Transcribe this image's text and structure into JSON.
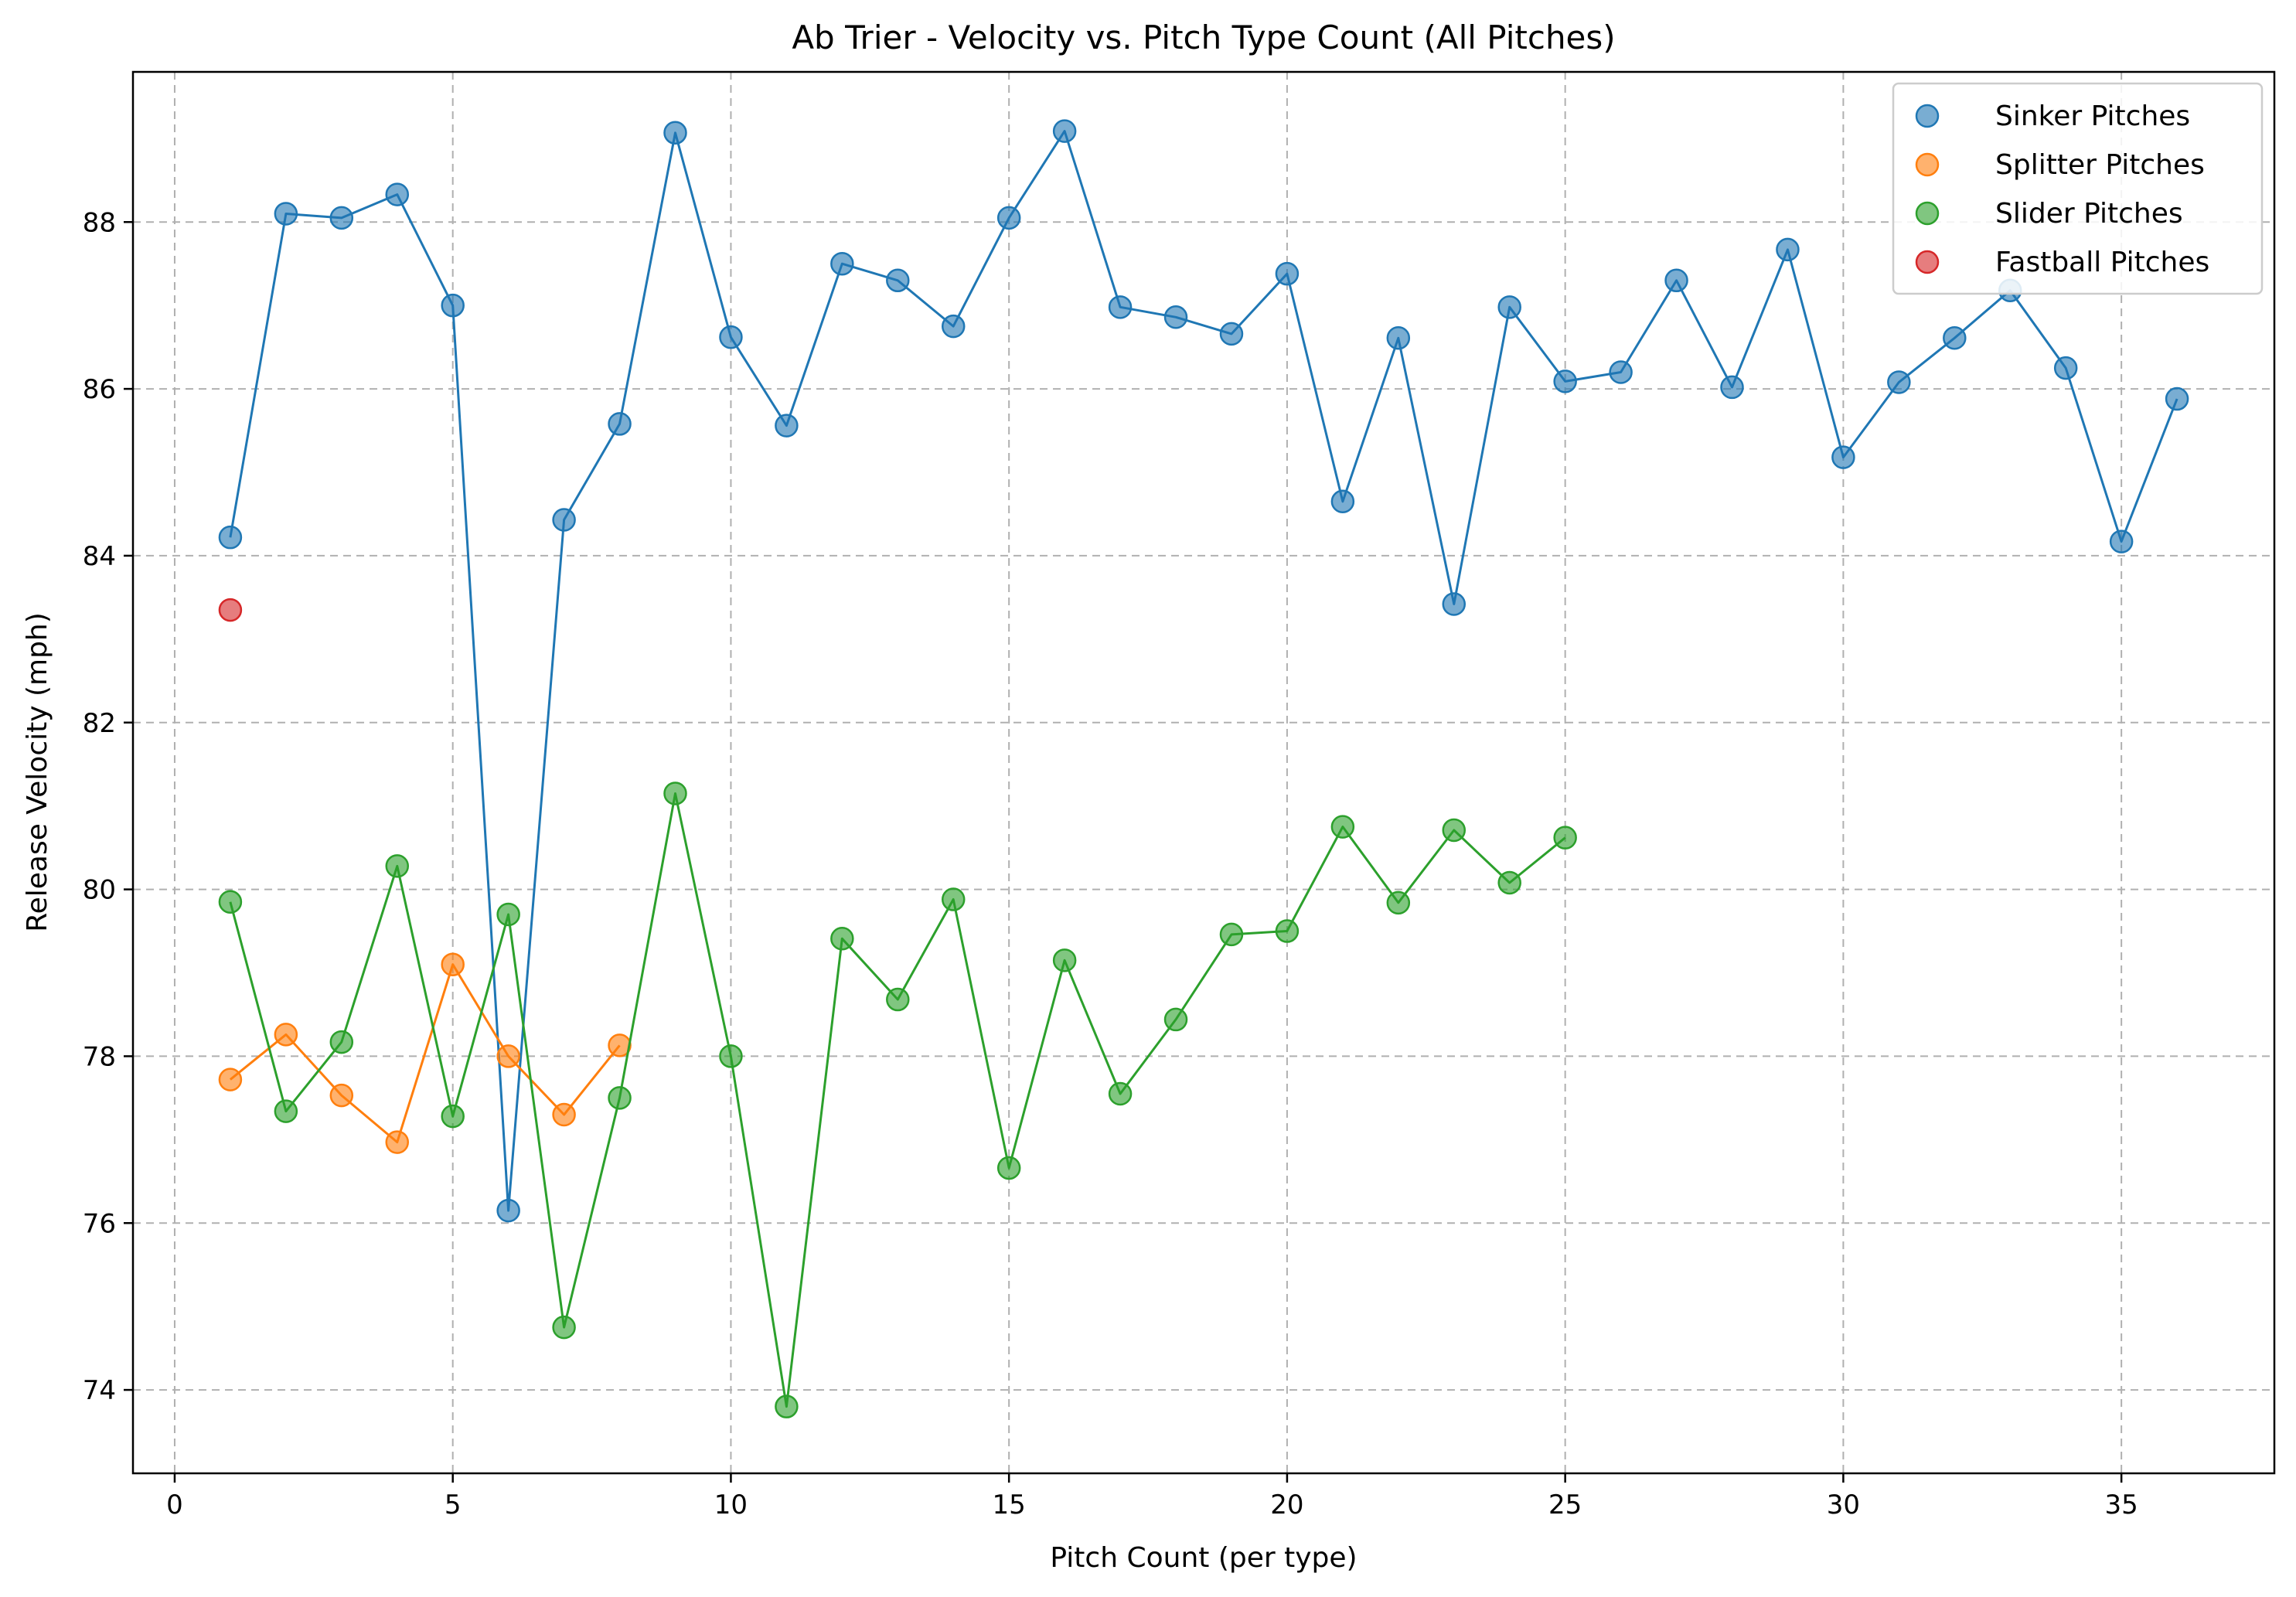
{
  "chart_data": {
    "type": "scatter",
    "title": "Ab Trier - Velocity vs. Pitch Type Count (All Pitches)",
    "xlabel": "Pitch Count (per type)",
    "ylabel": "Release Velocity (mph)",
    "xlim": [
      -0.75,
      37.75
    ],
    "ylim": [
      73.0,
      89.8
    ],
    "xticks": [
      0,
      5,
      10,
      15,
      20,
      25,
      30,
      35
    ],
    "yticks": [
      74,
      76,
      78,
      80,
      82,
      84,
      86,
      88
    ],
    "grid": true,
    "legend_position": "top-right",
    "series": [
      {
        "name": "Sinker Pitches",
        "color": "#1f77b4",
        "connected": true,
        "x": [
          1,
          2,
          3,
          4,
          5,
          6,
          7,
          8,
          9,
          10,
          11,
          12,
          13,
          14,
          15,
          16,
          17,
          18,
          19,
          20,
          21,
          22,
          23,
          24,
          25,
          26,
          27,
          28,
          29,
          30,
          31,
          32,
          33,
          34,
          35,
          36
        ],
        "y": [
          84.22,
          88.1,
          88.05,
          88.33,
          87.0,
          76.15,
          84.43,
          85.58,
          89.07,
          86.62,
          85.56,
          87.5,
          87.3,
          86.75,
          88.05,
          89.09,
          86.98,
          86.86,
          86.66,
          87.38,
          84.65,
          86.61,
          83.42,
          86.98,
          86.09,
          86.2,
          87.3,
          86.02,
          87.67,
          85.18,
          86.08,
          86.61,
          87.18,
          86.25,
          84.17,
          85.88
        ]
      },
      {
        "name": "Splitter Pitches",
        "color": "#ff7f0e",
        "connected": true,
        "x": [
          1,
          2,
          3,
          4,
          5,
          6,
          7,
          8
        ],
        "y": [
          77.72,
          78.26,
          77.53,
          76.97,
          79.1,
          78.0,
          77.3,
          78.13
        ]
      },
      {
        "name": "Slider Pitches",
        "color": "#2ca02c",
        "connected": true,
        "x": [
          1,
          2,
          3,
          4,
          5,
          6,
          7,
          8,
          9,
          10,
          11,
          12,
          13,
          14,
          15,
          16,
          17,
          18,
          19,
          20,
          21,
          22,
          23,
          24,
          25
        ],
        "y": [
          79.85,
          77.34,
          78.17,
          80.28,
          77.28,
          79.7,
          74.75,
          77.5,
          81.15,
          78.0,
          73.8,
          79.41,
          78.68,
          79.88,
          76.66,
          79.15,
          77.55,
          78.44,
          79.46,
          79.5,
          80.75,
          79.84,
          80.71,
          80.08,
          80.62
        ]
      },
      {
        "name": "Fastball Pitches",
        "color": "#d62728",
        "connected": false,
        "x": [
          1
        ],
        "y": [
          83.35
        ]
      }
    ]
  }
}
